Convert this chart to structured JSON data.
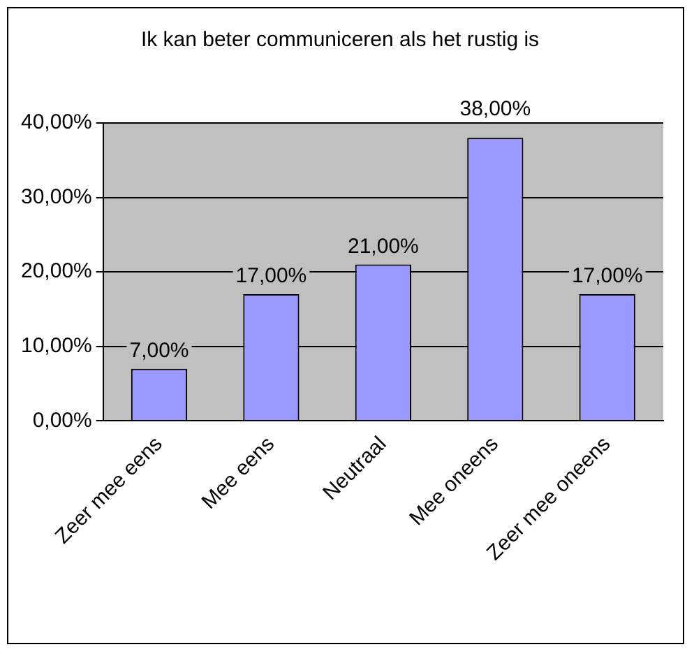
{
  "chart_data": {
    "type": "bar",
    "title": "Ik kan beter communiceren als het rustig is",
    "categories": [
      "Zeer mee eens",
      "Mee eens",
      "Neutraal",
      "Mee oneens",
      "Zeer mee oneens"
    ],
    "values": [
      7,
      17,
      21,
      38,
      17
    ],
    "value_labels": [
      "7,00%",
      "17,00%",
      "21,00%",
      "38,00%",
      "17,00%"
    ],
    "color": "#9999ff",
    "ylim": [
      0,
      40
    ],
    "yticks": [
      {
        "value": 0,
        "label": "0,00%"
      },
      {
        "value": 10,
        "label": "10,00%"
      },
      {
        "value": 20,
        "label": "20,00%"
      },
      {
        "value": 30,
        "label": "30,00%"
      },
      {
        "value": 40,
        "label": "40,00%"
      }
    ],
    "grid": "y"
  }
}
